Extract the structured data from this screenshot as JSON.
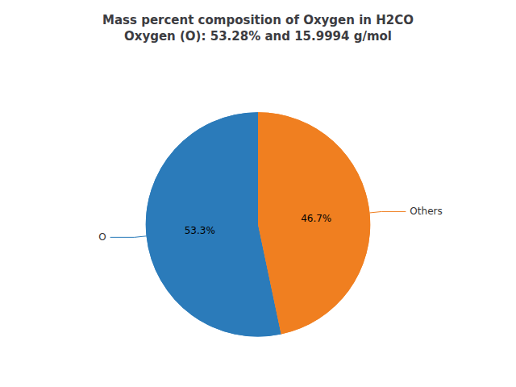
{
  "chart_data": {
    "type": "pie",
    "title": "Mass percent composition of Oxygen in H2CO\nOxygen (O): 53.28% and 15.9994 g/mol",
    "categories": [
      "O",
      "Others"
    ],
    "values": [
      53.3,
      46.7
    ],
    "value_labels": [
      "53.3%",
      "46.7%"
    ],
    "colors": [
      "#2b7bba",
      "#f07f20"
    ],
    "data_labels": true
  }
}
